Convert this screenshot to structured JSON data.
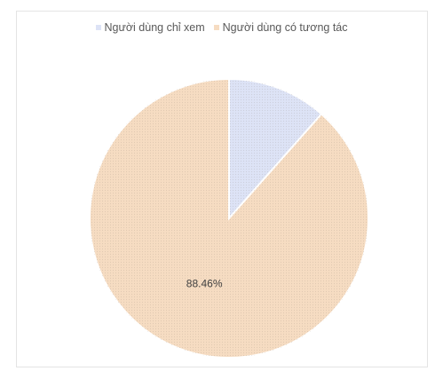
{
  "chart_data": {
    "type": "pie",
    "title": "",
    "legend_position": "top",
    "slices": [
      {
        "label": "Người dùng chỉ xem",
        "value": 11.54,
        "color": "#dde3f6"
      },
      {
        "label": "Người dùng có tương tác",
        "value": 88.46,
        "color": "#f6dcc2"
      }
    ],
    "data_labels": [
      "",
      "88.46%"
    ]
  }
}
